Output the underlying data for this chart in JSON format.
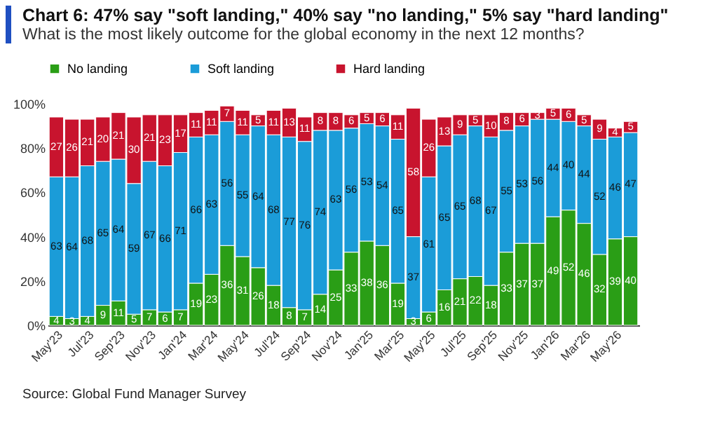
{
  "chart_data": {
    "type": "bar",
    "stacked": true,
    "title": "Chart 6: 47% say \"soft landing,\" 40% say \"no landing,\" 5% say \"hard landing\"",
    "subtitle": "What is the most likely outcome for the global economy in the next 12 months?",
    "categories": [
      "May'23",
      null,
      "Jul'23",
      null,
      "Sep'23",
      null,
      "Nov'23",
      null,
      "Jan'24",
      null,
      "Mar'24",
      null,
      "May'24",
      null,
      "Jul'24",
      null,
      "Sep'24",
      null,
      "Nov'24",
      null,
      "Jan'25",
      null,
      "Mar'25",
      null,
      "May'25",
      null,
      "Jul'25",
      null,
      "Sep'25",
      null,
      "Nov'25",
      null,
      "Jan'26",
      null,
      "Mar'26",
      null,
      "May'26",
      null
    ],
    "series": [
      {
        "name": "No landing",
        "color": "#2a9e16",
        "values": [
          4,
          3,
          4,
          9,
          11,
          5,
          7,
          6,
          7,
          19,
          23,
          36,
          31,
          26,
          18,
          8,
          7,
          14,
          25,
          33,
          38,
          36,
          19,
          3,
          6,
          16,
          21,
          22,
          18,
          33,
          37,
          37,
          49,
          52,
          46,
          32,
          39,
          40
        ]
      },
      {
        "name": "Soft landing",
        "color": "#1b9cd8",
        "values": [
          63,
          64,
          68,
          65,
          64,
          59,
          67,
          66,
          71,
          66,
          63,
          56,
          55,
          64,
          68,
          77,
          76,
          74,
          63,
          56,
          53,
          54,
          65,
          37,
          61,
          65,
          65,
          68,
          67,
          55,
          53,
          56,
          44,
          40,
          44,
          52,
          46,
          47
        ]
      },
      {
        "name": "Hard landing",
        "color": "#c8142e",
        "values": [
          27,
          26,
          21,
          20,
          21,
          30,
          21,
          23,
          17,
          11,
          11,
          7,
          11,
          5,
          11,
          13,
          11,
          8,
          8,
          6,
          5,
          6,
          11,
          58,
          26,
          13,
          9,
          5,
          10,
          8,
          6,
          3,
          5,
          6,
          5,
          9,
          4,
          5
        ]
      }
    ],
    "ylim": [
      0,
      100
    ],
    "yticks": [
      {
        "value": 0,
        "label": "0%"
      },
      {
        "value": 20,
        "label": "20%"
      },
      {
        "value": 40,
        "label": "40%"
      },
      {
        "value": 60,
        "label": "60%"
      },
      {
        "value": 80,
        "label": "80%"
      },
      {
        "value": 100,
        "label": "100%"
      }
    ],
    "data_labels": true,
    "legend": "top",
    "grid": false,
    "annotations": [
      "Source: Global Fund Manager Survey"
    ]
  }
}
